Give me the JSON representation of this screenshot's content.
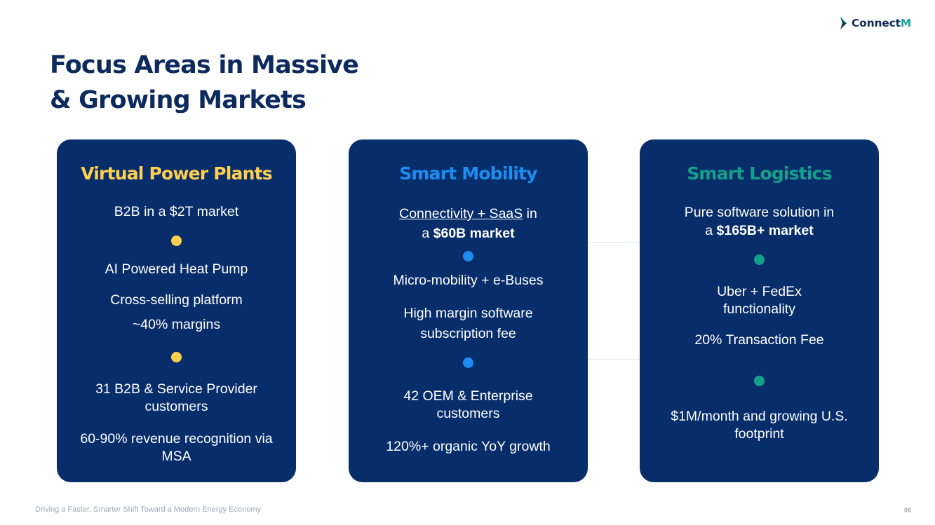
{
  "logo": {
    "text_main": "Connect",
    "text_accent": "M"
  },
  "title": {
    "line1": "Focus Areas in Massive",
    "line2": "& Growing Markets"
  },
  "colors": {
    "navy": "#072d6a",
    "title_navy": "#0d2a5e",
    "vpp_yellow": "#ffd04f",
    "mobility_blue": "#1d8ef0",
    "logistics_teal": "#14a08a"
  },
  "cards": {
    "vpp": {
      "title": "Virtual Power Plants",
      "market": "B2B in a $2T market",
      "item1": "AI Powered Heat Pump",
      "item2": "Cross-selling platform",
      "item3": "~40% margins",
      "item4": "31 B2B & Service Provider customers",
      "item5": "60-90% revenue recognition via MSA"
    },
    "mobility": {
      "title": "Smart Mobility",
      "market_link": "Connectivity + SaaS",
      "market_in": " in",
      "market_a": "a ",
      "market_bold": "$60B market",
      "item1": "Micro-mobility + e-Buses",
      "item2": "High margin software subscription fee",
      "item3": "42 OEM & Enterprise customers",
      "item4": "120%+ organic YoY growth"
    },
    "logistics": {
      "title": "Smart Logistics",
      "market_line1": "Pure software solution in",
      "market_a": "a ",
      "market_bold": "$165B+ market",
      "item1": "Uber + FedEx functionality",
      "item2": "20% Transaction Fee",
      "item3": "$1M/month and growing U.S. footprint"
    }
  },
  "footer": {
    "note": "Driving a Faster, Smarter Shift Toward a Modern Energy Economy",
    "page": "06"
  }
}
